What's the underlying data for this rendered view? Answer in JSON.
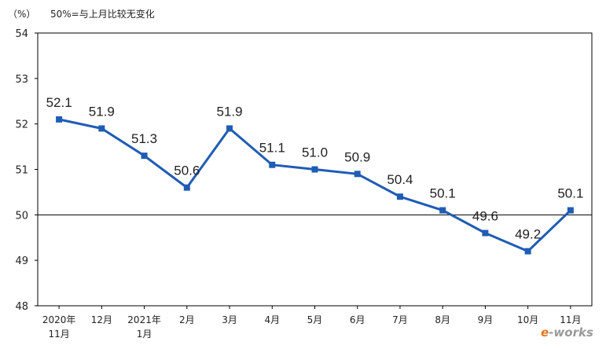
{
  "header": {
    "unit_label": "（%）",
    "note": "50%=与上月比较无变化"
  },
  "watermark": "e-works",
  "chart_data": {
    "type": "line",
    "title": "",
    "xlabel": "",
    "ylabel": "（%）",
    "categories": [
      [
        "2020年",
        "11月"
      ],
      [
        "12月"
      ],
      [
        "2021年",
        "1月"
      ],
      [
        "2月"
      ],
      [
        "3月"
      ],
      [
        "4月"
      ],
      [
        "5月"
      ],
      [
        "6月"
      ],
      [
        "7月"
      ],
      [
        "8月"
      ],
      [
        "9月"
      ],
      [
        "10月"
      ],
      [
        "11月"
      ]
    ],
    "series": [
      {
        "values": [
          52.1,
          51.9,
          51.3,
          50.6,
          51.9,
          51.1,
          51.0,
          50.9,
          50.4,
          50.1,
          49.6,
          49.2,
          50.1
        ],
        "labels": [
          "52.1",
          "51.9",
          "51.3",
          "50.6",
          "51.9",
          "51.1",
          "51.0",
          "50.9",
          "50.4",
          "50.1",
          "49.6",
          "49.2",
          "50.1"
        ],
        "color": "#1f5cb5"
      }
    ],
    "ylim": [
      48,
      54
    ],
    "yticks": [
      48,
      49,
      50,
      51,
      52,
      53,
      54
    ],
    "reference_line": 50,
    "grid": false,
    "legend": "none"
  }
}
